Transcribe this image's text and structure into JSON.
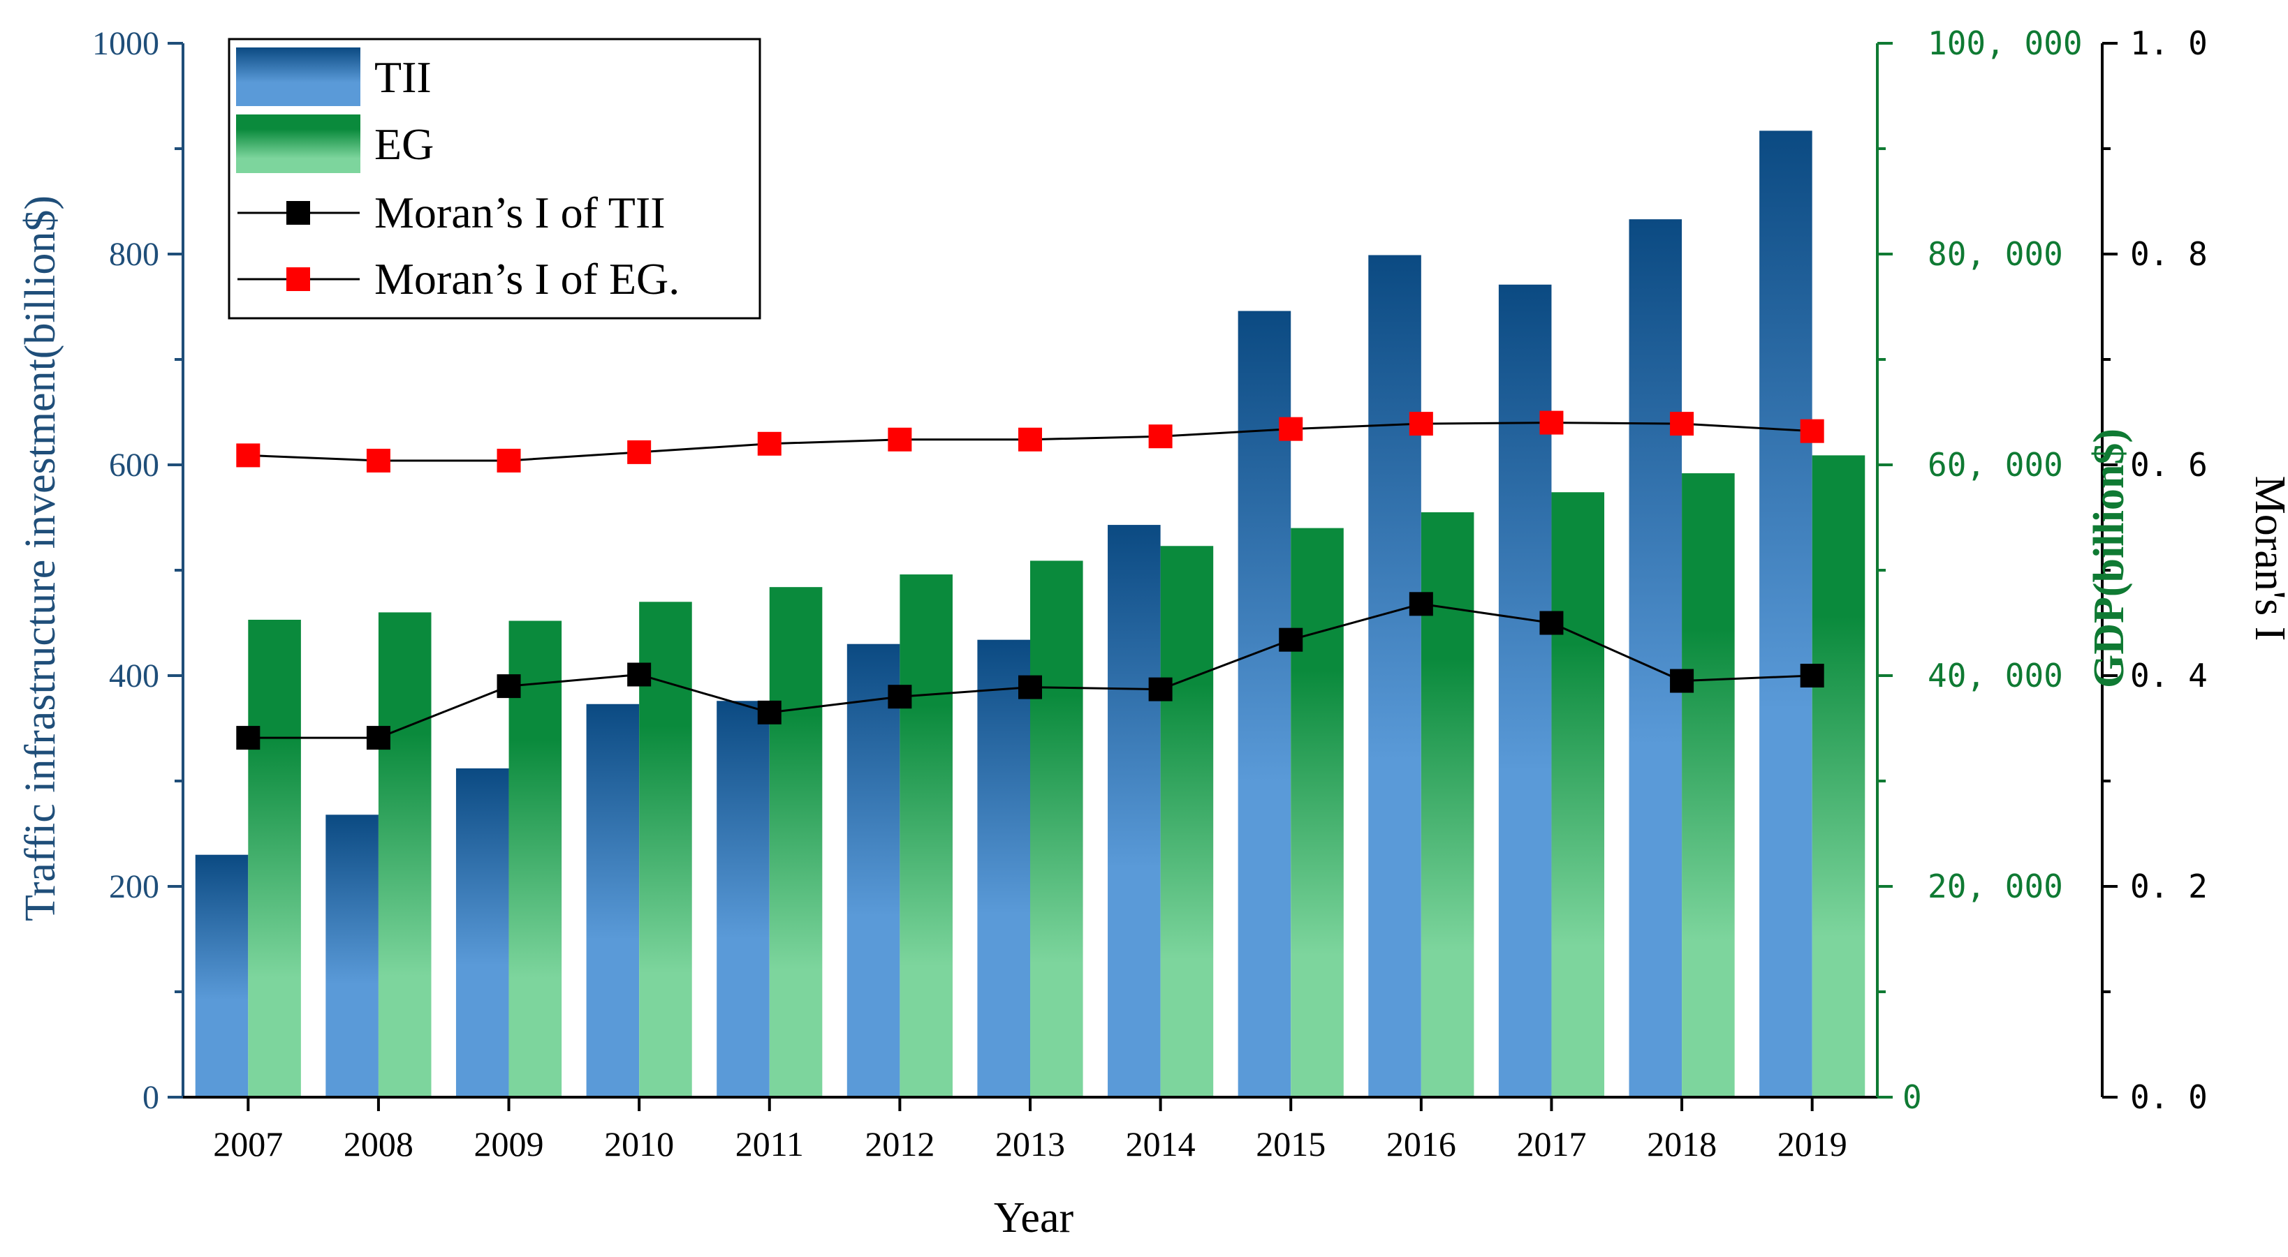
{
  "chart_data": {
    "type": "bar",
    "categories": [
      "2007",
      "2008",
      "2009",
      "2010",
      "2011",
      "2012",
      "2013",
      "2014",
      "2015",
      "2016",
      "2017",
      "2018",
      "2019"
    ],
    "series": [
      {
        "name": "TII",
        "type": "bar",
        "axis": "left",
        "values": [
          230,
          268,
          312,
          373,
          376,
          430,
          434,
          543,
          746,
          799,
          771,
          833,
          917
        ]
      },
      {
        "name": "EG",
        "type": "bar",
        "axis": "right1",
        "values": [
          45300,
          46000,
          45200,
          47000,
          48400,
          49600,
          50900,
          52300,
          54000,
          55500,
          57400,
          59200,
          60900
        ]
      },
      {
        "name": "Moran’s I of TII",
        "type": "line",
        "axis": "right2",
        "values": [
          0.341,
          0.341,
          0.39,
          0.401,
          0.365,
          0.38,
          0.389,
          0.387,
          0.434,
          0.468,
          0.45,
          0.395,
          0.4
        ]
      },
      {
        "name": "Moran’s I of EG.",
        "type": "line",
        "axis": "right2",
        "values": [
          0.609,
          0.604,
          0.604,
          0.612,
          0.62,
          0.624,
          0.624,
          0.627,
          0.634,
          0.639,
          0.64,
          0.639,
          0.632
        ]
      }
    ],
    "xlabel": "Year",
    "ylabel": "Traffic infrastructure investment(billion$)",
    "y2label": "GDP(billion$)",
    "y3label": "Moran's I",
    "ylim": [
      0,
      1000
    ],
    "y2lim": [
      0,
      100000
    ],
    "y3lim": [
      0,
      1.0
    ],
    "yticks": [
      "0",
      "200",
      "400",
      "600",
      "800",
      "1000"
    ],
    "y2ticks": [
      "0",
      "20, 000",
      "40, 000",
      "60, 000",
      "80, 000",
      "100, 000"
    ],
    "y3ticks": [
      "0. 0",
      "0. 2",
      "0. 4",
      "0. 6",
      "0. 8",
      "1. 0"
    ],
    "legend_position": "top-left",
    "grid": false,
    "colors": {
      "tii_dark": "#0b4a82",
      "tii_light": "#5a9ad8",
      "eg_dark": "#0a8a3c",
      "eg_light": "#7dd59d",
      "line_tii": "#000000",
      "line_eg": "#000000",
      "marker_tii": "#000000",
      "marker_eg": "#ff0000",
      "left_axis": "#1f4e79",
      "right1_axis": "#0f7a33",
      "right2_axis": "#000000"
    }
  }
}
